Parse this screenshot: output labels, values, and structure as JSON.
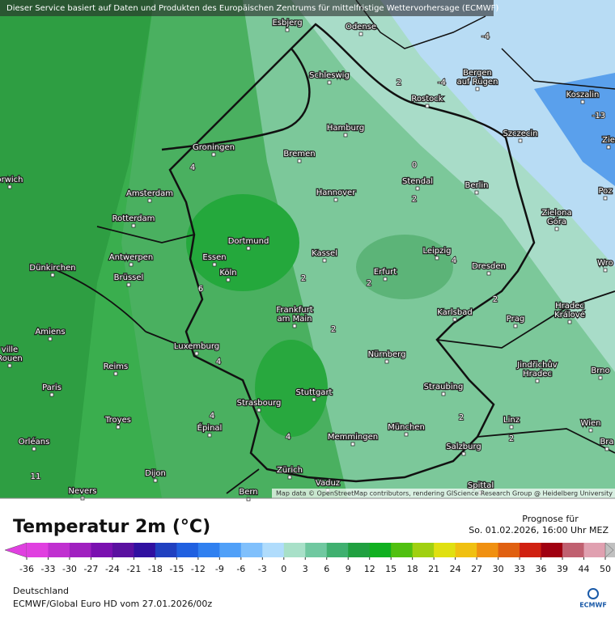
{
  "banner": "Dieser Service basiert auf Daten und Produkten des Europäischen Zentrums für mittelfristige Wettervorhersage (ECMWF)",
  "attribution": "Map data © OpenStreetMap contributors, rendering GIScience Research Group @ Heidelberg University",
  "cities": [
    [
      "Esbjerg"
    ],
    [
      "Odense"
    ],
    [
      "Schleswig"
    ],
    [
      "Bergen",
      "auf Rügen"
    ],
    [
      "Koszalin"
    ],
    [
      "Rostock"
    ],
    [
      "Hamburg"
    ],
    [
      "Szczecin"
    ],
    [
      "Bremen"
    ],
    [
      "Groningen"
    ],
    [
      "orwich"
    ],
    [
      "Stendal"
    ],
    [
      "Amsterdam"
    ],
    [
      "Hannover"
    ],
    [
      "Berlin"
    ],
    [
      "Poz"
    ],
    [
      "Zielona",
      "Góra"
    ],
    [
      "Rotterdam"
    ],
    [
      "Dortmund"
    ],
    [
      "Essen"
    ],
    [
      "Antwerpen"
    ],
    [
      "Kassel"
    ],
    [
      "Leipzig"
    ],
    [
      "Dünkirchen"
    ],
    [
      "Köln"
    ],
    [
      "Erfurt"
    ],
    [
      "Dresden"
    ],
    [
      "Wro"
    ],
    [
      "Brüssel"
    ],
    [
      "Frankfurt",
      "am Main"
    ],
    [
      "Karlsbad"
    ],
    [
      "Hradec",
      "Králové"
    ],
    [
      "Prag"
    ],
    [
      "Amiens"
    ],
    [
      "Luxemburg"
    ],
    [
      "Nürnberg"
    ],
    [
      "ville",
      "Rouen"
    ],
    [
      "Jindřichův",
      "Hradec"
    ],
    [
      "Brno"
    ],
    [
      "Reims"
    ],
    [
      "Paris"
    ],
    [
      "Stuttgart"
    ],
    [
      "Straubing"
    ],
    [
      "Strasbourg"
    ],
    [
      "Troyes"
    ],
    [
      "Épinal"
    ],
    [
      "Linz"
    ],
    [
      "Wien"
    ],
    [
      "Bra"
    ],
    [
      "München"
    ],
    [
      "Memmingen"
    ],
    [
      "Orléans"
    ],
    [
      "Salzburg"
    ],
    [
      "Dijon"
    ],
    [
      "Zürich"
    ],
    [
      "Vaduz"
    ],
    [
      "Nevers"
    ],
    [
      "Bern"
    ],
    [
      "Spittal"
    ],
    [
      "Zie"
    ]
  ],
  "map_values": [
    -4,
    -4,
    2,
    -13,
    4,
    0,
    2,
    4,
    2,
    2,
    6,
    2,
    2,
    4,
    4,
    2,
    4,
    2,
    11
  ],
  "title": "Temperatur 2m (°C)",
  "forecast_label": "Prognose für",
  "forecast_time": "So. 01.02.2026, 16:00 Uhr MEZ",
  "scale": {
    "ticks": [
      -36,
      -33,
      -30,
      -27,
      -24,
      -21,
      -18,
      -15,
      -12,
      -9,
      -6,
      -3,
      0,
      3,
      6,
      9,
      12,
      15,
      18,
      21,
      24,
      27,
      30,
      33,
      36,
      39,
      44,
      50
    ],
    "colors": [
      "#e040e0",
      "#c030d0",
      "#a020c0",
      "#7a10b0",
      "#5a10a0",
      "#3010a0",
      "#2040c0",
      "#2060e0",
      "#3080f0",
      "#50a0f8",
      "#80c0fc",
      "#b0dcfc",
      "#a8e0c8",
      "#70c8a0",
      "#40b070",
      "#20a040",
      "#10b020",
      "#50c010",
      "#a0d010",
      "#e0e010",
      "#f0c010",
      "#f09010",
      "#e06010",
      "#d02010",
      "#a00010",
      "#c06070",
      "#e0a0b0",
      "#c0c0c0"
    ]
  },
  "region": "Deutschland",
  "model": "ECMWF/Global Euro HD vom  27.01.2026/00z",
  "logo": "ECMWF"
}
